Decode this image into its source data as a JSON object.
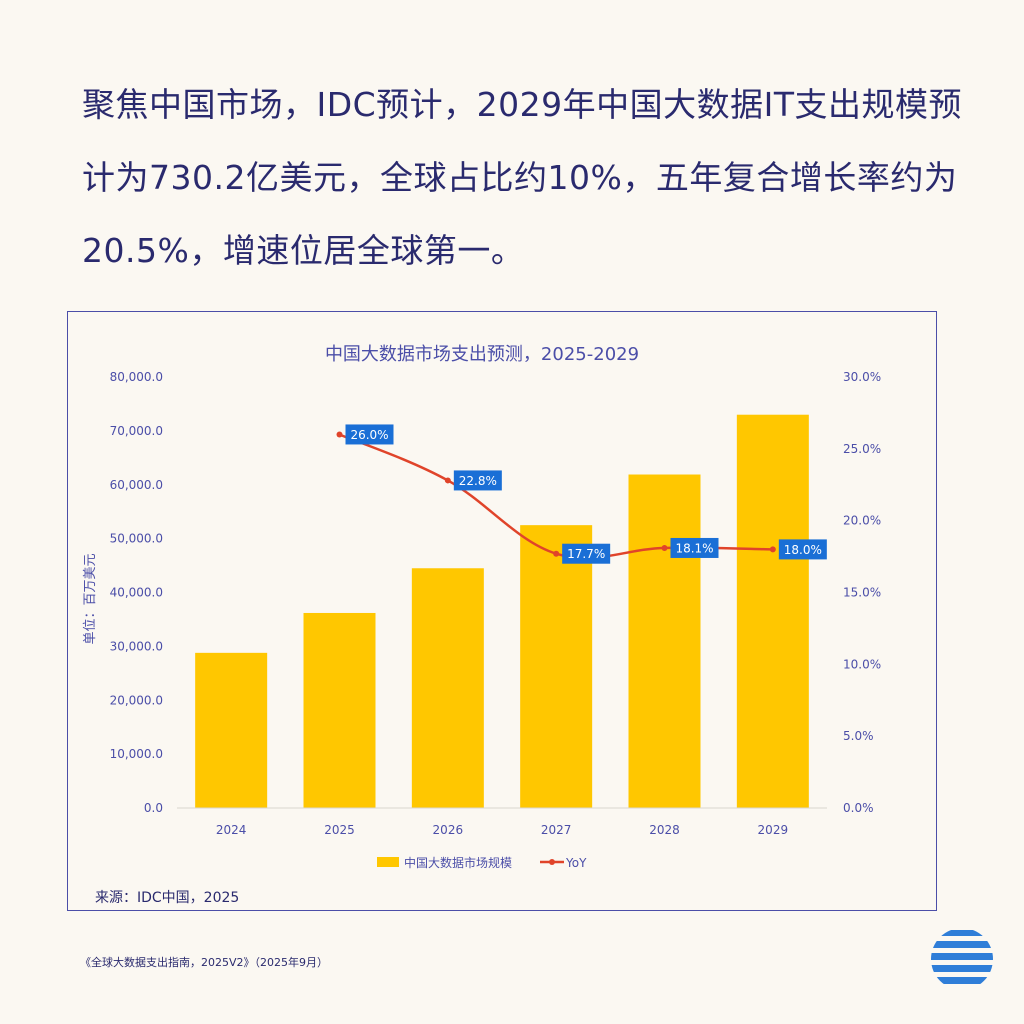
{
  "headline": {
    "line1": "聚焦中国市场，IDC预计，2029年中国大数据IT支出规模预",
    "line2": "计为730.2亿美元，全球占比约10%，五年复合增长率约为",
    "line3": "20.5%，增速位居全球第一。"
  },
  "source": "来源：IDC中国，2025",
  "footnote": "《全球大数据支出指南，2025V2》（2025年9月）",
  "colors": {
    "bar": "#ffc700",
    "line": "#e0442a",
    "label_bg": "#1a6fd6",
    "text": "#4b4ea8",
    "headline": "#2a2a6e"
  },
  "chart_data": {
    "type": "bar",
    "title": "中国大数据市场支出预测，2025-2029",
    "ylabel": "单位：百万美元",
    "categories": [
      "2024",
      "2025",
      "2026",
      "2027",
      "2028",
      "2029"
    ],
    "ylim": [
      0,
      80000
    ],
    "y2lim": [
      0,
      30
    ],
    "y_ticks": [
      "0.0",
      "10,000.0",
      "20,000.0",
      "30,000.0",
      "40,000.0",
      "50,000.0",
      "60,000.0",
      "70,000.0",
      "80,000.0"
    ],
    "y2_ticks": [
      "0.0%",
      "5.0%",
      "10.0%",
      "15.0%",
      "20.0%",
      "25.0%",
      "30.0%"
    ],
    "series": [
      {
        "name": "中国大数据市场规模",
        "kind": "bar",
        "axis": "left",
        "values": [
          28800,
          36200,
          44500,
          52500,
          61900,
          73000
        ]
      },
      {
        "name": "YoY",
        "kind": "line",
        "axis": "right",
        "values": [
          null,
          26.0,
          22.8,
          17.7,
          18.1,
          18.0
        ],
        "labels": [
          "",
          "26.0%",
          "22.8%",
          "17.7%",
          "18.1%",
          "18.0%"
        ]
      }
    ],
    "legend_position": "bottom",
    "grid": false
  }
}
